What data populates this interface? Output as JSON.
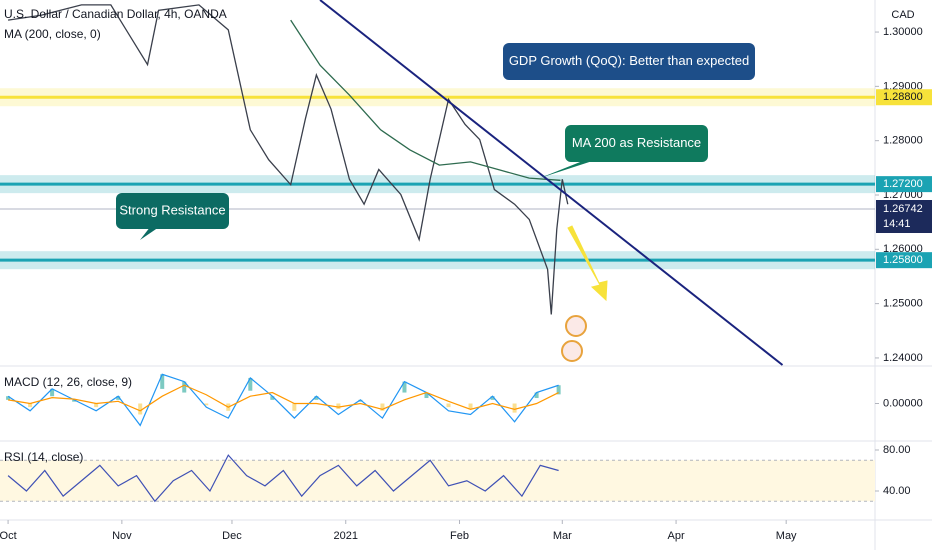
{
  "chart_data": [
    {
      "type": "line",
      "title": "U.S. Dollar / Canadian Dollar, 4h, OANDA",
      "currency": "CAD",
      "x": [
        0,
        9,
        20,
        28,
        38,
        41,
        52,
        60,
        66,
        71,
        77,
        81,
        84,
        88,
        93,
        97,
        101,
        107,
        112,
        115,
        120,
        124.5,
        128.5,
        132.5,
        138,
        142,
        147,
        148,
        149.5,
        151,
        152.5
      ],
      "values": [
        1.3022,
        1.3031,
        1.305,
        1.305,
        1.294,
        1.304,
        1.305,
        1.3004,
        1.282,
        1.2765,
        1.2719,
        1.284,
        1.2921,
        1.2858,
        1.2729,
        1.2683,
        1.2747,
        1.2701,
        1.2618,
        1.2729,
        1.2876,
        1.283,
        1.2802,
        1.271,
        1.2683,
        1.2655,
        1.2563,
        1.248,
        1.2637,
        1.2729,
        1.2683
      ],
      "color": "#3a3f4b",
      "ma": {
        "name": "MA (200, close, 0)",
        "color": "#2e6b4f",
        "x": [
          77,
          85,
          93,
          101.5,
          109.5,
          117.5,
          126,
          134,
          142,
          150.5
        ],
        "values": [
          1.3022,
          1.2939,
          1.2884,
          1.282,
          1.2783,
          1.2755,
          1.2761,
          1.2746,
          1.2731,
          1.2727
        ]
      },
      "trendline": {
        "color": "#1a237e",
        "x": [
          85,
          211
        ],
        "values": [
          1.3059,
          1.2387
        ]
      },
      "levels": [
        {
          "value": 1.288,
          "label": "1.28800",
          "color": "#f7e23a"
        },
        {
          "value": 1.272,
          "label": "1.27200",
          "color": "#1ba3b3"
        },
        {
          "value": 1.258,
          "label": "1.25800",
          "color": "#1ba3b3"
        }
      ],
      "last_price": {
        "value": 1.26742,
        "label": "1.26742"
      },
      "countdown": "14:41",
      "annotations": [
        "GDP Growth (QoQ): Better than expected",
        "MA 200 as Resistance",
        "Strong Resistance"
      ],
      "xlim": [
        -2.2,
        236.2
      ],
      "xticks": [
        {
          "value": 0,
          "label": "Oct"
        },
        {
          "value": 31,
          "label": "Nov"
        },
        {
          "value": 61,
          "label": "Dec"
        },
        {
          "value": 92,
          "label": "2021"
        },
        {
          "value": 123,
          "label": "Feb"
        },
        {
          "value": 151,
          "label": "Mar"
        },
        {
          "value": 182,
          "label": "Apr"
        },
        {
          "value": 212,
          "label": "May"
        }
      ],
      "ylim": [
        1.2387,
        1.3059
      ],
      "yticks": [
        {
          "value": 1.3,
          "label": "1.30000"
        },
        {
          "value": 1.29,
          "label": "1.29000"
        },
        {
          "value": 1.28,
          "label": "1.28000"
        },
        {
          "value": 1.27,
          "label": "1.27000"
        },
        {
          "value": 1.26,
          "label": "1.26000"
        },
        {
          "value": 1.25,
          "label": "1.25000"
        },
        {
          "value": 1.24,
          "label": "1.24000"
        }
      ]
    },
    {
      "type": "line",
      "title": "MACD (12, 26, close, 9)",
      "x": [
        0,
        6,
        12,
        18,
        24,
        30,
        36,
        42,
        48,
        54,
        60,
        66,
        72,
        78,
        84,
        90,
        96,
        102,
        108,
        114,
        120,
        126,
        132,
        138,
        144,
        150
      ],
      "series": [
        {
          "color": "#2196f3",
          "values": [
            0.001,
            -0.001,
            0.002,
            0.0005,
            -0.001,
            0.001,
            -0.003,
            0.004,
            0.003,
            -0.0005,
            -0.002,
            0.0035,
            0.001,
            -0.002,
            0.001,
            -0.0015,
            0.0005,
            -0.002,
            0.003,
            0.0015,
            -0.001,
            -0.0015,
            0.001,
            -0.0025,
            0.0015,
            0.0025
          ]
        },
        {
          "color": "#ff9800",
          "values": [
            0.0005,
            0,
            0.0008,
            0.0006,
            0,
            0.0003,
            -0.001,
            0.001,
            0.0025,
            0.0012,
            -0.0005,
            0.001,
            0.0015,
            0,
            0,
            -0.0005,
            0,
            -0.0008,
            0.0005,
            0.0015,
            0.0003,
            -0.0008,
            0,
            -0.0008,
            0,
            0.0015
          ]
        }
      ],
      "ylim": [
        -0.005,
        0.005
      ],
      "yticks": [
        {
          "value": 0,
          "label": "0.00000"
        }
      ]
    },
    {
      "type": "line",
      "title": "RSI (14, close)",
      "x": [
        0,
        5,
        10,
        15,
        20,
        25,
        30,
        35,
        40,
        45,
        50,
        55,
        60,
        65,
        70,
        75,
        80,
        85,
        90,
        95,
        100,
        105,
        110,
        115,
        120,
        125,
        130,
        135,
        140,
        145,
        150
      ],
      "values": [
        55,
        40,
        60,
        35,
        50,
        65,
        45,
        55,
        30,
        50,
        60,
        40,
        75,
        55,
        45,
        60,
        35,
        55,
        65,
        45,
        60,
        40,
        55,
        70,
        45,
        50,
        40,
        55,
        35,
        65,
        60
      ],
      "color": "#3f51b5",
      "band": [
        30,
        70
      ],
      "ylim": [
        11.7,
        87.8
      ],
      "yticks": [
        {
          "value": 80,
          "label": "80.00"
        },
        {
          "value": 40,
          "label": "40.00"
        }
      ]
    }
  ]
}
